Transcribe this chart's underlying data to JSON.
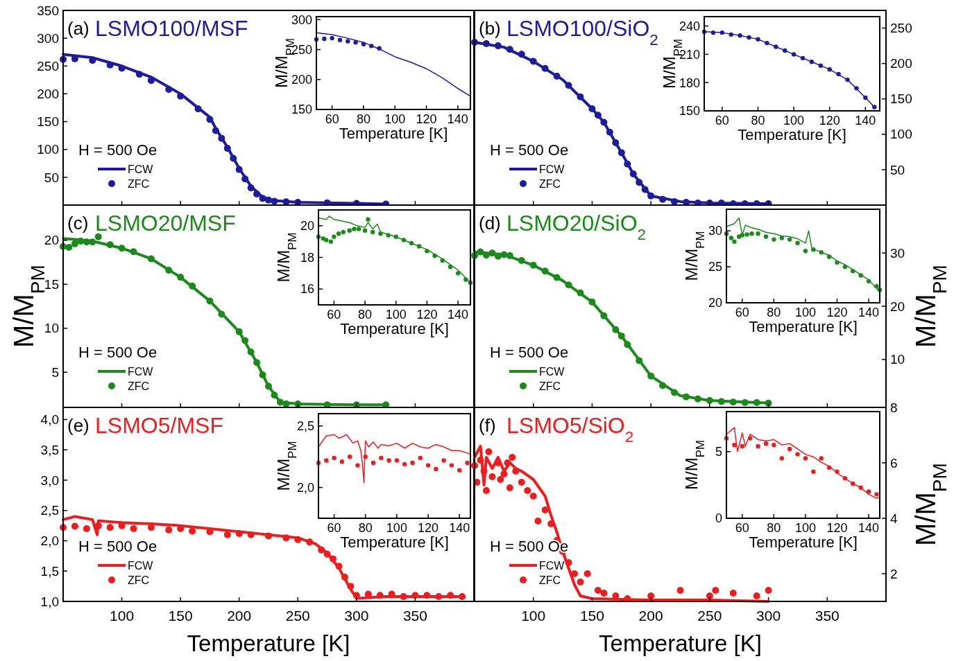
{
  "chart_data": [
    {
      "type": "line",
      "title": "LSMO100/MSF",
      "annotations": [
        "(a)",
        "H = 500 Oe"
      ],
      "xlim": [
        50,
        400
      ],
      "ylim": [
        0,
        350
      ],
      "xticks": [
        100,
        150,
        200,
        250,
        300,
        350
      ],
      "yticks": [
        50,
        100,
        150,
        200,
        250,
        300,
        350
      ],
      "tick_labels": "y",
      "legend": "bottom left",
      "series": [
        {
          "name": "FCW",
          "type": "line",
          "color": "#1c1c9c",
          "x": [
            50,
            75,
            100,
            125,
            150,
            175,
            180,
            190,
            200,
            210,
            220,
            230,
            250,
            300,
            325
          ],
          "values": [
            271,
            265,
            250,
            230,
            200,
            158,
            138,
            104,
            66,
            34,
            14,
            8,
            5,
            3,
            2
          ]
        },
        {
          "name": "ZFC",
          "type": "scatter",
          "marker": "circle",
          "color": "#1c1c9c",
          "x": [
            50,
            60,
            75,
            90,
            100,
            115,
            125,
            140,
            150,
            165,
            175,
            180,
            185,
            190,
            195,
            200,
            205,
            210,
            215,
            220,
            225,
            230,
            240,
            250,
            275,
            300,
            325
          ],
          "values": [
            262,
            263,
            260,
            252,
            246,
            235,
            224,
            208,
            196,
            173,
            154,
            134,
            120,
            102,
            84,
            64,
            47,
            31,
            20,
            12,
            9,
            7,
            6,
            5,
            4,
            3,
            2
          ]
        }
      ]
    },
    {
      "type": "line",
      "xlabel": "Temperature [K]",
      "ylabel": "M/M$_{PM}$",
      "xlim": [
        50,
        148
      ],
      "ylim": [
        150,
        305
      ],
      "xticks": [
        60,
        80,
        100,
        120,
        140
      ],
      "yticks": [
        150,
        200,
        250,
        300
      ],
      "series": [
        {
          "type": "line",
          "color": "#1c1c9c",
          "x": [
            50,
            60,
            70,
            80,
            90,
            100,
            110,
            120,
            130,
            140,
            148
          ],
          "values": [
            278,
            275,
            269,
            262,
            251,
            238,
            229,
            218,
            203,
            185,
            172
          ]
        },
        {
          "type": "scatter",
          "marker": "circle",
          "color": "#1c1c9c",
          "x": [
            50,
            55,
            60,
            65,
            70,
            75,
            80,
            85,
            90
          ],
          "values": [
            267,
            268,
            269,
            266,
            264,
            262,
            259,
            256,
            252
          ]
        }
      ]
    },
    {
      "type": "line",
      "title": "LSMO100/SiO$_{2}$",
      "annotations": [
        "(b)",
        "H = 500 Oe"
      ],
      "xlim": [
        50,
        400
      ],
      "ylim": [
        0,
        275
      ],
      "xticks": [
        100,
        150,
        200,
        250,
        300,
        350
      ],
      "yticks": [
        50,
        100,
        150,
        200,
        250
      ],
      "tick_labels": "y",
      "legend": "bottom left",
      "series": [
        {
          "name": "FCW",
          "type": "line",
          "color": "#1c1c9c",
          "x": [
            50,
            75,
            100,
            125,
            150,
            160,
            175,
            185,
            200,
            225,
            250,
            300
          ],
          "values": [
            230,
            223,
            203,
            177,
            136,
            117,
            74,
            44,
            13,
            5,
            3,
            2
          ]
        },
        {
          "name": "ZFC",
          "type": "scatter",
          "marker": "circle",
          "color": "#1c1c9c",
          "x": [
            50,
            60,
            70,
            80,
            90,
            100,
            110,
            120,
            130,
            140,
            150,
            155,
            160,
            165,
            170,
            175,
            180,
            185,
            190,
            195,
            200,
            210,
            220,
            230,
            240,
            250,
            260,
            270,
            280,
            290,
            300
          ],
          "values": [
            230,
            228,
            225,
            220,
            213,
            203,
            193,
            182,
            169,
            153,
            136,
            127,
            117,
            103,
            88,
            74,
            58,
            44,
            32,
            22,
            13,
            8,
            5,
            4,
            3,
            3,
            3,
            2,
            2,
            2,
            2
          ]
        }
      ]
    },
    {
      "type": "line",
      "xlabel": "Temperature [K]",
      "ylabel": "M/M$_{PM}$",
      "xlim": [
        50,
        148
      ],
      "ylim": [
        150,
        250
      ],
      "xticks": [
        60,
        80,
        100,
        120,
        140
      ],
      "yticks": [
        150,
        180,
        210,
        240
      ],
      "series": [
        {
          "type": "line",
          "color": "#1c1c9c",
          "x": [
            50,
            60,
            70,
            80,
            90,
            100,
            110,
            120,
            130,
            140,
            145
          ],
          "values": [
            234,
            233,
            230,
            226,
            218,
            210,
            202,
            194,
            183,
            164,
            154
          ]
        },
        {
          "type": "scatter",
          "marker": "circle",
          "color": "#1c1c9c",
          "x": [
            50,
            55,
            60,
            65,
            70,
            75,
            80,
            85,
            90,
            95,
            100,
            105,
            110,
            115,
            120,
            125,
            130,
            135,
            140,
            145
          ],
          "values": [
            234,
            233,
            233,
            231,
            230,
            228,
            226,
            222,
            218,
            214,
            210,
            206,
            202,
            198,
            194,
            189,
            183,
            174,
            164,
            154
          ]
        }
      ]
    },
    {
      "type": "line",
      "title": "LSMO20/MSF",
      "ylabel": "M/M$_{PM}$",
      "annotations": [
        "(c)",
        "H = 500 Oe"
      ],
      "xlim": [
        50,
        400
      ],
      "ylim": [
        1,
        24
      ],
      "xticks": [
        100,
        150,
        200,
        250,
        300,
        350
      ],
      "yticks": [
        5,
        10,
        15,
        20
      ],
      "tick_labels": "y",
      "legend": "bottom left",
      "series": [
        {
          "name": "FCW",
          "type": "line",
          "color": "#1a8a1a",
          "x": [
            50,
            60,
            75,
            100,
            125,
            150,
            175,
            200,
            215,
            225,
            235,
            250,
            300,
            325
          ],
          "values": [
            20.2,
            20.1,
            19.9,
            19.1,
            17.9,
            15.8,
            13.1,
            9.6,
            6.1,
            3.4,
            1.6,
            1.4,
            1.3,
            1.3
          ]
        },
        {
          "name": "ZFC",
          "type": "scatter",
          "marker": "circle",
          "color": "#1a8a1a",
          "x": [
            50,
            55,
            60,
            65,
            70,
            75,
            80,
            90,
            100,
            110,
            125,
            140,
            150,
            160,
            175,
            185,
            200,
            205,
            210,
            215,
            220,
            225,
            230,
            235,
            240,
            250,
            275,
            300,
            325
          ],
          "values": [
            19.3,
            19.2,
            19.6,
            19.9,
            19.8,
            19.8,
            20.4,
            19.5,
            19.1,
            18.7,
            17.9,
            16.6,
            15.8,
            14.8,
            13.1,
            11.6,
            9.6,
            8.6,
            7.3,
            6.1,
            4.7,
            3.4,
            2.4,
            1.6,
            1.4,
            1.4,
            1.3,
            1.3,
            1.3
          ]
        }
      ]
    },
    {
      "type": "line",
      "xlabel": "Temperature [K]",
      "ylabel": "M/M$_{PM}$",
      "xlim": [
        50,
        148
      ],
      "ylim": [
        15,
        21
      ],
      "xticks": [
        60,
        80,
        100,
        120,
        140
      ],
      "yticks": [
        16,
        18,
        20
      ],
      "series": [
        {
          "type": "line",
          "color": "#1a8a1a",
          "x": [
            50,
            55,
            57,
            60,
            65,
            70,
            75,
            80,
            82,
            85,
            88,
            90,
            100,
            110,
            120,
            130,
            140,
            148
          ],
          "values": [
            20.5,
            20.4,
            20.6,
            20.4,
            20.3,
            20.2,
            20.0,
            19.9,
            20.2,
            19.8,
            20.1,
            19.6,
            19.3,
            18.9,
            18.5,
            17.9,
            17.2,
            16.4
          ]
        },
        {
          "type": "scatter",
          "marker": "circle",
          "color": "#1a8a1a",
          "x": [
            50,
            53,
            55,
            58,
            60,
            63,
            66,
            70,
            73,
            76,
            80,
            82,
            85,
            90,
            95,
            100,
            105,
            110,
            115,
            120,
            125,
            130,
            135,
            140,
            145,
            148
          ],
          "values": [
            19.3,
            19.2,
            19.1,
            19.0,
            19.3,
            19.5,
            19.6,
            19.7,
            19.8,
            19.8,
            19.7,
            20.4,
            19.6,
            19.5,
            19.4,
            19.3,
            19.1,
            18.9,
            18.7,
            18.4,
            18.1,
            17.8,
            17.4,
            17.0,
            16.6,
            16.4
          ]
        }
      ]
    },
    {
      "type": "line",
      "title": "LSMO20/SiO$_{2}$",
      "ylabel": "M/M$_{PM}$",
      "annotations": [
        "(d)",
        "H = 500 Oe"
      ],
      "xlim": [
        50,
        400
      ],
      "ylim": [
        1,
        39
      ],
      "xticks": [
        100,
        150,
        200,
        250,
        300,
        350
      ],
      "yticks": [
        10,
        20,
        30
      ],
      "tick_labels": "y",
      "legend": "bottom left",
      "series": [
        {
          "name": "FCW",
          "type": "line",
          "color": "#1a8a1a",
          "x": [
            50,
            75,
            100,
            125,
            150,
            175,
            200,
            225,
            250,
            300
          ],
          "values": [
            30.2,
            29.7,
            27.7,
            24.8,
            20.8,
            14.4,
            6.9,
            3.2,
            2.3,
            1.8
          ]
        },
        {
          "name": "ZFC",
          "type": "scatter",
          "marker": "circle",
          "color": "#1a8a1a",
          "x": [
            50,
            55,
            60,
            65,
            70,
            75,
            80,
            90,
            100,
            110,
            120,
            130,
            140,
            150,
            160,
            170,
            175,
            180,
            190,
            200,
            210,
            220,
            230,
            240,
            250,
            260,
            270,
            280,
            290,
            300
          ],
          "values": [
            29.5,
            30.2,
            29.6,
            30.0,
            29.4,
            29.7,
            29.5,
            28.6,
            27.7,
            26.6,
            25.4,
            24.0,
            22.5,
            20.8,
            18.2,
            15.6,
            14.4,
            12.8,
            9.8,
            6.9,
            5.1,
            3.8,
            3.0,
            2.6,
            2.3,
            2.1,
            2.0,
            1.9,
            1.9,
            1.8
          ]
        }
      ]
    },
    {
      "type": "line",
      "xlabel": "Temperature [K]",
      "ylabel": "M/M$_{PM}$",
      "xlim": [
        50,
        147
      ],
      "ylim": [
        20,
        33
      ],
      "xticks": [
        60,
        80,
        100,
        120,
        140
      ],
      "yticks": [
        20,
        25,
        30
      ],
      "series": [
        {
          "type": "line",
          "color": "#1a8a1a",
          "x": [
            50,
            55,
            58,
            60,
            62,
            65,
            70,
            75,
            80,
            85,
            90,
            95,
            100,
            102,
            104,
            110,
            115,
            120,
            125,
            130,
            135,
            140,
            147
          ],
          "values": [
            30.6,
            31.0,
            31.8,
            29.4,
            30.8,
            30.5,
            30.2,
            29.8,
            29.6,
            29.3,
            29.2,
            28.9,
            28.3,
            30.0,
            27.6,
            27.0,
            26.6,
            25.8,
            25.3,
            24.6,
            23.9,
            23.2,
            21.5
          ]
        },
        {
          "type": "scatter",
          "marker": "circle",
          "color": "#1a8a1a",
          "x": [
            50,
            53,
            55,
            58,
            60,
            63,
            66,
            70,
            75,
            80,
            85,
            90,
            95,
            100,
            105,
            110,
            115,
            120,
            125,
            130,
            135,
            140,
            145,
            147
          ],
          "values": [
            29.6,
            29.0,
            28.5,
            29.2,
            29.4,
            29.5,
            29.6,
            29.6,
            29.2,
            28.8,
            29.0,
            28.8,
            28.3,
            27.2,
            27.4,
            27.0,
            26.4,
            25.6,
            25.0,
            24.4,
            23.8,
            23.0,
            22.3,
            21.8
          ]
        }
      ]
    },
    {
      "type": "line",
      "title": "LSMO5/MSF",
      "xlabel": "Temperature [K]",
      "annotations": [
        "(e)",
        "H = 500 Oe"
      ],
      "xlim": [
        50,
        400
      ],
      "ylim": [
        1,
        4.2
      ],
      "xticks": [
        100,
        150,
        200,
        250,
        300,
        350
      ],
      "yticks": [
        {
          "value": 1,
          "label": "1,0"
        },
        {
          "value": 1.5,
          "label": "1,5"
        },
        {
          "value": 2,
          "label": "2,0"
        },
        {
          "value": 2.5,
          "label": "2,5"
        },
        {
          "value": 3,
          "label": "3,0"
        },
        {
          "value": 3.5,
          "label": "3,5"
        },
        {
          "value": 4,
          "label": "4,0"
        }
      ],
      "legend": "bottom left",
      "series": [
        {
          "name": "FCW",
          "type": "line",
          "color": "#ee1c1c",
          "x": [
            50,
            60,
            75,
            79,
            80,
            100,
            125,
            150,
            175,
            200,
            225,
            250,
            265,
            275,
            285,
            295,
            300,
            325,
            350,
            390
          ],
          "values": [
            2.35,
            2.4,
            2.35,
            2.1,
            2.33,
            2.3,
            2.28,
            2.25,
            2.2,
            2.15,
            2.1,
            2.05,
            1.95,
            1.8,
            1.55,
            1.2,
            1.05,
            1.08,
            1.08,
            1.08
          ]
        },
        {
          "name": "ZFC",
          "type": "scatter",
          "marker": "circle",
          "color": "#ee1c1c",
          "x": [
            50,
            60,
            70,
            80,
            90,
            100,
            110,
            125,
            140,
            150,
            160,
            175,
            190,
            200,
            210,
            225,
            240,
            250,
            260,
            270,
            275,
            280,
            285,
            290,
            295,
            300,
            310,
            320,
            330,
            340,
            350,
            360,
            370,
            380,
            390
          ],
          "values": [
            2.22,
            2.24,
            2.2,
            2.25,
            2.22,
            2.25,
            2.2,
            2.22,
            2.18,
            2.2,
            2.16,
            2.15,
            2.1,
            2.12,
            2.1,
            2.08,
            2.05,
            2.02,
            1.98,
            1.85,
            1.78,
            1.7,
            1.58,
            1.4,
            1.25,
            1.1,
            1.12,
            1.1,
            1.12,
            1.08,
            1.1,
            1.1,
            1.08,
            1.1,
            1.08
          ]
        }
      ]
    },
    {
      "type": "line",
      "xlabel": "Temperature [K]",
      "ylabel": "M/M$_{PM}$",
      "xlim": [
        50,
        147
      ],
      "ylim": [
        1.75,
        2.6
      ],
      "xticks": [
        60,
        80,
        100,
        120,
        140
      ],
      "yticks": [
        {
          "value": 2,
          "label": "2,0"
        },
        {
          "value": 2.5,
          "label": "2,5"
        }
      ],
      "series": [
        {
          "type": "line",
          "color": "#ee1c1c",
          "x": [
            50,
            55,
            60,
            63,
            65,
            68,
            72,
            75,
            77,
            78,
            79,
            80,
            82,
            85,
            88,
            90,
            95,
            100,
            105,
            110,
            115,
            120,
            125,
            130,
            135,
            140,
            145,
            147
          ],
          "values": [
            2.33,
            2.42,
            2.43,
            2.4,
            2.41,
            2.43,
            2.36,
            2.38,
            2.3,
            2.2,
            2.04,
            2.38,
            2.33,
            2.37,
            2.32,
            2.35,
            2.34,
            2.36,
            2.32,
            2.36,
            2.33,
            2.32,
            2.35,
            2.33,
            2.3,
            2.3,
            2.28,
            2.27
          ]
        },
        {
          "type": "scatter",
          "marker": "circle",
          "color": "#ee1c1c",
          "x": [
            50,
            55,
            60,
            65,
            70,
            75,
            80,
            85,
            90,
            95,
            100,
            105,
            110,
            115,
            120,
            125,
            130,
            135,
            140,
            145
          ],
          "values": [
            2.2,
            2.22,
            2.24,
            2.21,
            2.25,
            2.18,
            2.25,
            2.2,
            2.24,
            2.22,
            2.22,
            2.19,
            2.2,
            2.24,
            2.18,
            2.15,
            2.22,
            2.18,
            2.14,
            2.2
          ]
        }
      ]
    },
    {
      "type": "line",
      "title": "LSMO5/SiO$_{2}$",
      "xlabel": "Temperature [K]",
      "ylabel": "M/M$_{PM}$",
      "annotations": [
        "(f)",
        "H = 500 Oe"
      ],
      "xlim": [
        50,
        400
      ],
      "ylim": [
        1,
        8
      ],
      "xticks": [
        100,
        150,
        200,
        250,
        300,
        350
      ],
      "yticks": [
        2,
        4,
        6,
        8
      ],
      "legend": "bottom left",
      "series": [
        {
          "name": "FCW",
          "type": "line",
          "color": "#ee1c1c",
          "x": [
            50,
            55,
            58,
            60,
            65,
            70,
            75,
            80,
            85,
            90,
            100,
            110,
            115,
            120,
            125,
            130,
            135,
            140,
            150,
            200,
            250,
            300
          ],
          "values": [
            6.2,
            6.6,
            5.2,
            6.2,
            5.8,
            6.2,
            5.7,
            6.0,
            5.8,
            5.7,
            5.4,
            4.8,
            4.1,
            3.5,
            2.8,
            2.2,
            1.6,
            1.2,
            1.1,
            1.05,
            1.05,
            1.0
          ]
        },
        {
          "name": "ZFC",
          "type": "scatter",
          "marker": "circle",
          "color": "#ee1c1c",
          "x": [
            50,
            52,
            55,
            58,
            60,
            62,
            65,
            70,
            72,
            75,
            78,
            80,
            82,
            85,
            90,
            95,
            100,
            104,
            110,
            115,
            120,
            125,
            130,
            135,
            140,
            146,
            155,
            160,
            170,
            180,
            200,
            225,
            250,
            255,
            270,
            290,
            300
          ],
          "values": [
            5.9,
            5.3,
            6.1,
            5.7,
            5.0,
            6.4,
            5.5,
            6.0,
            5.4,
            5.6,
            6.0,
            5.1,
            6.2,
            5.7,
            5.3,
            5.0,
            4.8,
            3.9,
            4.3,
            3.8,
            3.2,
            2.8,
            2.4,
            2.0,
            1.7,
            2.0,
            1.4,
            1.3,
            1.2,
            1.1,
            1.2,
            1.4,
            1.2,
            1.4,
            1.3,
            1.2,
            1.4
          ]
        }
      ]
    },
    {
      "type": "line",
      "xlabel": "Temperature [K]",
      "ylabel": "M/M$_{PM}$",
      "xlim": [
        50,
        147
      ],
      "ylim": [
        0,
        8
      ],
      "xticks": [
        60,
        80,
        100,
        120,
        140
      ],
      "yticks": [
        0,
        5
      ],
      "series": [
        {
          "type": "line",
          "color": "#ee1c1c",
          "x": [
            50,
            55,
            57,
            60,
            62,
            65,
            70,
            75,
            80,
            85,
            90,
            95,
            100,
            105,
            110,
            115,
            120,
            125,
            130,
            135,
            140,
            145,
            147
          ],
          "values": [
            6.3,
            6.8,
            5.0,
            6.4,
            5.4,
            6.3,
            5.9,
            5.8,
            5.9,
            5.5,
            5.6,
            5.2,
            4.8,
            4.6,
            4.2,
            3.9,
            3.4,
            3.0,
            2.6,
            2.3,
            1.8,
            1.5,
            1.6
          ]
        },
        {
          "type": "scatter",
          "marker": "circle",
          "color": "#ee1c1c",
          "x": [
            50,
            55,
            60,
            65,
            70,
            75,
            80,
            85,
            90,
            95,
            100,
            105,
            110,
            115,
            120,
            125,
            130,
            135,
            140,
            145
          ],
          "values": [
            6.0,
            5.5,
            5.4,
            6.0,
            5.4,
            5.6,
            5.5,
            4.5,
            5.2,
            4.8,
            4.5,
            3.5,
            4.5,
            3.8,
            3.5,
            3.0,
            2.6,
            2.3,
            2.0,
            1.8
          ]
        }
      ]
    }
  ]
}
